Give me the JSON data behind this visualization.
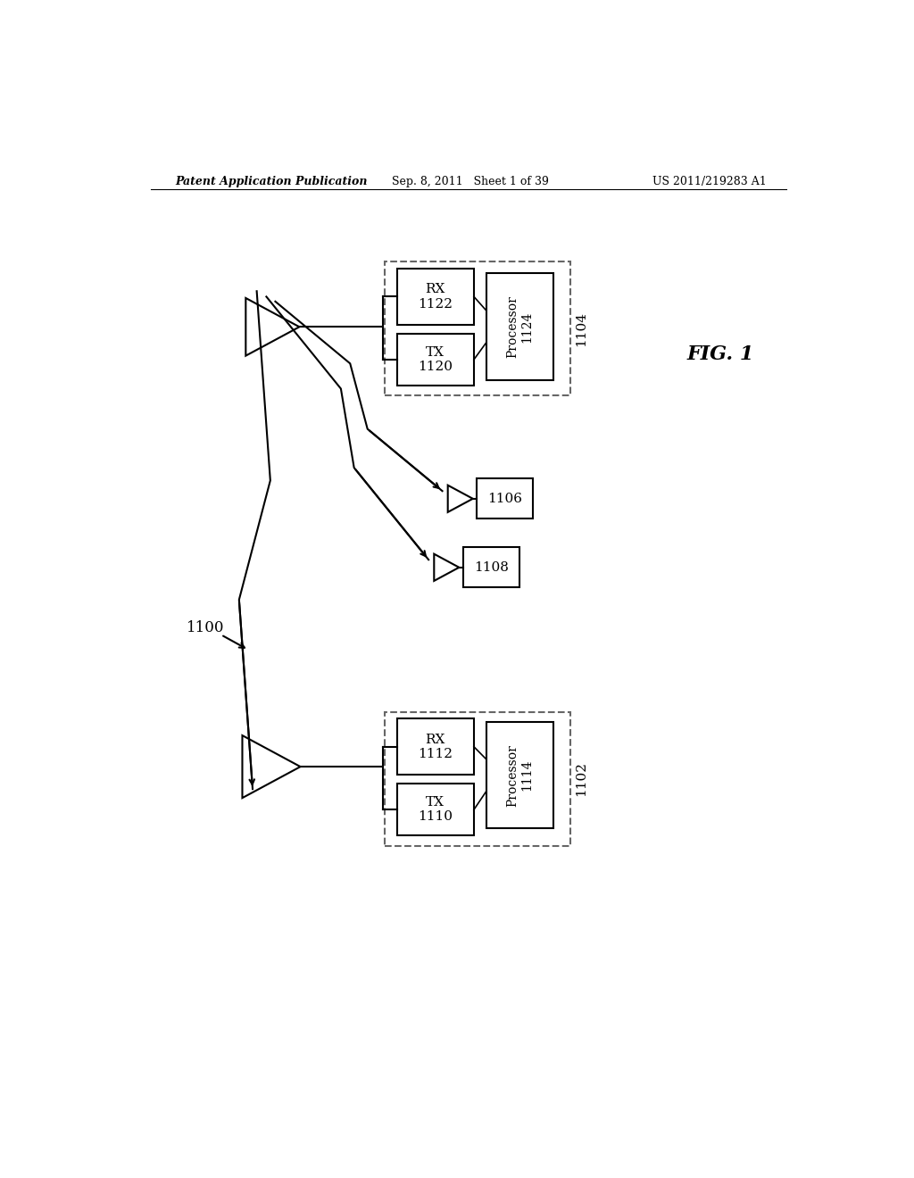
{
  "background_color": "#ffffff",
  "header_left": "Patent Application Publication",
  "header_center": "Sep. 8, 2011   Sheet 1 of 39",
  "header_right": "US 2011/219283 A1",
  "fig_label": "FIG. 1",
  "system_label": "1100",
  "node1104_label": "1104",
  "node1102_label": "1102",
  "node1106_label": "1106",
  "node1108_label": "1108",
  "rx1122_label": "RX\n1122",
  "tx1120_label": "TX\n1120",
  "proc1124_label": "Processor\n1124",
  "rx1112_label": "RX\n1112",
  "tx1110_label": "TX\n1110",
  "proc1114_label": "Processor\n1114"
}
